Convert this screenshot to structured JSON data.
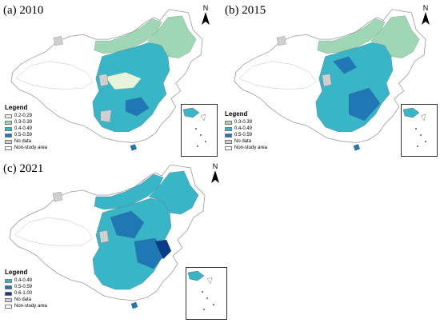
{
  "panels": [
    {
      "title": "(a) 2010",
      "north_label": "N",
      "legend_title": "Legend",
      "legend": [
        {
          "label": "0.2-0.29",
          "color": "#e6f4d9"
        },
        {
          "label": "0.3-0.39",
          "color": "#9fd6b4"
        },
        {
          "label": "0.4-0.49",
          "color": "#38b6c8"
        },
        {
          "label": "0.5-0.59",
          "color": "#1f78b4"
        },
        {
          "label": "No data",
          "color": "#cfcfcf"
        },
        {
          "label": "Non-study area",
          "color": "#ffffff"
        }
      ]
    },
    {
      "title": "(b) 2015",
      "north_label": "N",
      "legend_title": "Legend",
      "legend": [
        {
          "label": "0.3-0.39",
          "color": "#9fd6b4"
        },
        {
          "label": "0.4-0.49",
          "color": "#38b6c8"
        },
        {
          "label": "0.5-0.59",
          "color": "#1f78b4"
        },
        {
          "label": "No data",
          "color": "#cfcfcf"
        },
        {
          "label": "Non-study area",
          "color": "#ffffff"
        }
      ]
    },
    {
      "title": "(c) 2021",
      "north_label": "N",
      "legend_title": "Legend",
      "legend": [
        {
          "label": "0.4-0.49",
          "color": "#38b6c8"
        },
        {
          "label": "0.5-0.59",
          "color": "#1f78b4"
        },
        {
          "label": "0.6-1.00",
          "color": "#0b3c8c"
        },
        {
          "label": "No data",
          "color": "#cfcfcf"
        },
        {
          "label": "Non-study area",
          "color": "#ffffff"
        }
      ]
    }
  ]
}
